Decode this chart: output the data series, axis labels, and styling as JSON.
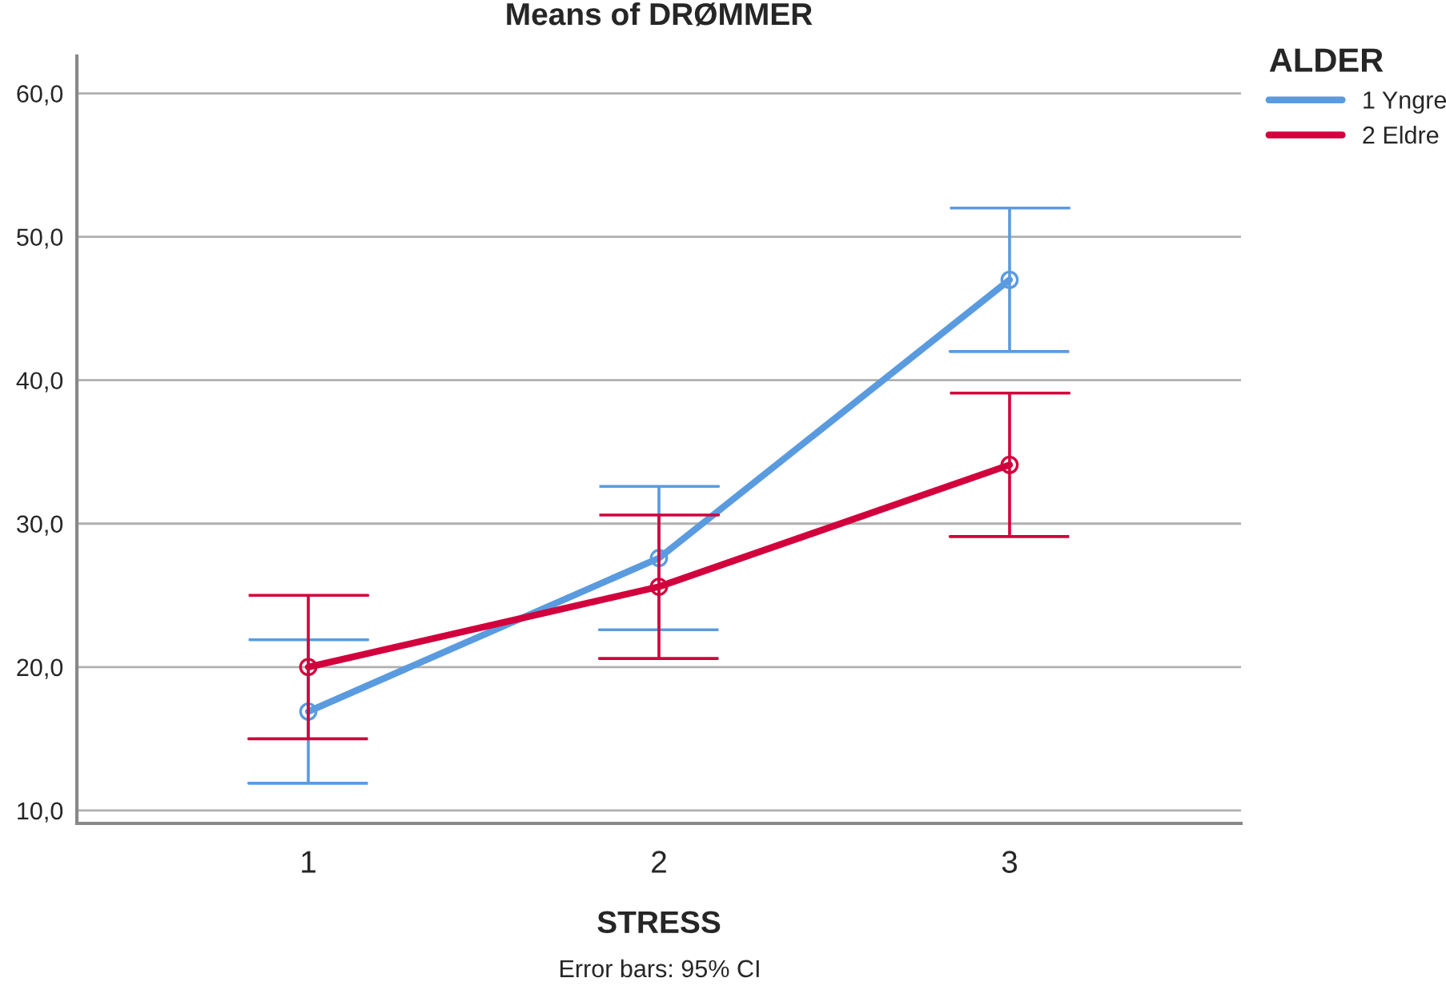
{
  "chart_data": {
    "type": "line",
    "title": "Means of DRØMMER",
    "xlabel": "STRESS",
    "legend_title": "ALDER",
    "annotations": [
      "Error bars: 95% CI"
    ],
    "categories": [
      "1",
      "2",
      "3"
    ],
    "series": [
      {
        "name": "1 Yngre",
        "color": "#5a9be0",
        "values": [
          16.9,
          27.6,
          47.0
        ],
        "errors": [
          5.0,
          5.0,
          5.0
        ]
      },
      {
        "name": "2 Eldre",
        "color": "#d2003c",
        "values": [
          20.0,
          25.6,
          34.1
        ],
        "errors": [
          5.0,
          5.0,
          5.0
        ]
      }
    ],
    "ylim": [
      9.1,
      62.6
    ],
    "yticks": [
      {
        "value": 10,
        "label": "10,0"
      },
      {
        "value": 20,
        "label": "20,0"
      },
      {
        "value": 30,
        "label": "30,0"
      },
      {
        "value": 40,
        "label": "40,0"
      },
      {
        "value": 50,
        "label": "50,0"
      },
      {
        "value": 60,
        "label": "60,0"
      }
    ],
    "grid": "y",
    "legend": "top right",
    "marker": "circle",
    "line_style": "solid"
  }
}
